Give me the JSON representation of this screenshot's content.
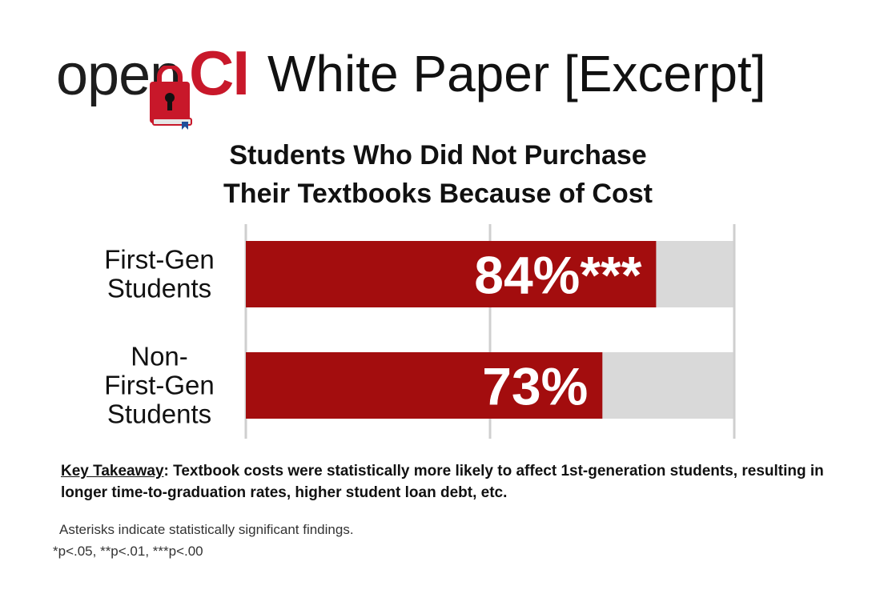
{
  "header": {
    "logo_open": "open",
    "logo_ci": "CI",
    "title": "White Paper [Excerpt]",
    "brand_red": "#c8182a"
  },
  "chart_data": {
    "type": "bar",
    "orientation": "horizontal",
    "title": "Students Who Did Not Purchase Their Textbooks Because of Cost",
    "title_lines": [
      "Students Who Did Not Purchase",
      "Their Textbooks Because of Cost"
    ],
    "categories": [
      [
        "First-Gen",
        "Students"
      ],
      [
        "Non-",
        "First-Gen",
        "Students"
      ]
    ],
    "values": [
      84,
      73
    ],
    "data_labels": [
      "84%***",
      "73%"
    ],
    "xlim": [
      0,
      100
    ],
    "grid": true,
    "bar_color": "#a30d0e",
    "track_color": "#d9d9d9",
    "label_color": "#ffffff"
  },
  "takeaway": {
    "key": "Key Takeaway",
    "text": ": Textbook costs were statistically more likely to affect 1st-generation students, resulting in longer time-to-graduation rates, higher student loan debt, etc."
  },
  "footnote": {
    "note": "Asterisks indicate statistically significant findings.",
    "pvalues": "*p<.05, **p<.01, ***p<.00"
  }
}
